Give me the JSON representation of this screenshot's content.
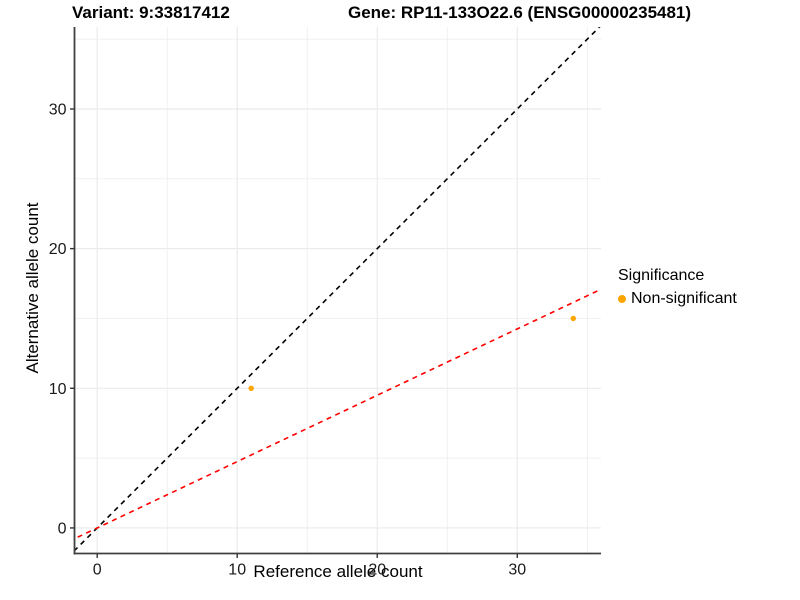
{
  "chart_data": {
    "type": "scatter",
    "title_left": "Variant: 9:33817412",
    "title_right": "Gene: RP11-133O22.6 (ENSG00000235481)",
    "xlabel": "Reference allele count",
    "ylabel": "Alternative allele count",
    "xlim": [
      -1.62,
      35.98
    ],
    "ylim": [
      -1.83,
      35.87
    ],
    "x_major_ticks": [
      0,
      10,
      20,
      30
    ],
    "y_major_ticks": [
      0,
      10,
      20,
      30
    ],
    "x_minor_gridlines": [
      5,
      15,
      25,
      35
    ],
    "y_minor_gridlines": [
      5,
      15,
      25,
      35
    ],
    "grid": true,
    "legend_position": "right",
    "series": [
      {
        "name": "Non-significant",
        "color": "#FFA500",
        "points": [
          {
            "x": 11,
            "y": 10
          },
          {
            "x": 34,
            "y": 15
          }
        ]
      }
    ],
    "reference_lines": [
      {
        "name": "identity-line",
        "slope": 1,
        "intercept": 0,
        "color": "#000000",
        "style": "dashed"
      },
      {
        "name": "fit-line",
        "slope": 0.475,
        "intercept": 0,
        "color": "#FF0000",
        "style": "dashed"
      }
    ],
    "legend": {
      "title": "Significance",
      "items": [
        {
          "label": "Non-significant",
          "color": "#FFA500"
        }
      ]
    },
    "colors": {
      "grid": "#EBEBEB",
      "axis_line": "#404040",
      "tick_mark": "#333333"
    }
  }
}
